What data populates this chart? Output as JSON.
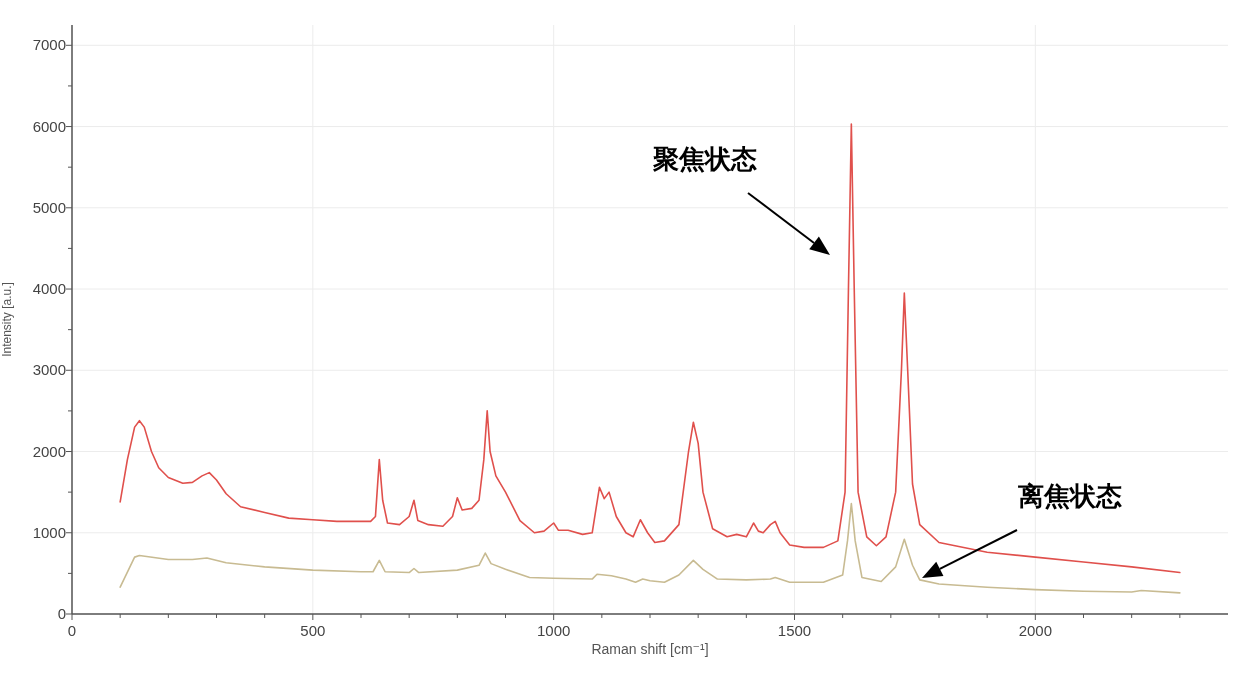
{
  "chart_data": {
    "type": "line",
    "xlabel": "Raman shift [cm⁻¹]",
    "ylabel": "Intensity [a.u.]",
    "xlim": [
      0,
      2400
    ],
    "ylim": [
      0,
      7250
    ],
    "xticks": [
      0,
      {
        "value": 100,
        "label": null
      },
      {
        "value": 200,
        "label": null
      },
      {
        "value": 300,
        "label": null
      },
      {
        "value": 400,
        "label": null
      },
      500,
      {
        "value": 600,
        "label": null
      },
      {
        "value": 700,
        "label": null
      },
      {
        "value": 800,
        "label": null
      },
      {
        "value": 900,
        "label": null
      },
      1000,
      {
        "value": 1100,
        "label": null
      },
      {
        "value": 1200,
        "label": null
      },
      {
        "value": 1300,
        "label": null
      },
      {
        "value": 1400,
        "label": null
      },
      1500,
      {
        "value": 1600,
        "label": null
      },
      {
        "value": 1700,
        "label": null
      },
      {
        "value": 1800,
        "label": null
      },
      {
        "value": 1900,
        "label": null
      },
      2000,
      {
        "value": 2100,
        "label": null
      },
      {
        "value": 2200,
        "label": null
      },
      {
        "value": 2300,
        "label": null
      }
    ],
    "yticks": [
      0,
      {
        "value": 500,
        "label": null
      },
      1000,
      {
        "value": 1500,
        "label": null
      },
      2000,
      {
        "value": 2500,
        "label": null
      },
      3000,
      {
        "value": 3500,
        "label": null
      },
      4000,
      {
        "value": 4500,
        "label": null
      },
      5000,
      {
        "value": 5500,
        "label": null
      },
      6000,
      {
        "value": 6500,
        "label": null
      },
      7000
    ],
    "grid": true,
    "marker": "none",
    "line_style": "solid",
    "series": [
      {
        "color": "#e0504c",
        "x": [
          100,
          115,
          130,
          140,
          150,
          165,
          180,
          200,
          230,
          250,
          270,
          285,
          300,
          320,
          350,
          400,
          450,
          500,
          550,
          600,
          620,
          630,
          638,
          645,
          655,
          680,
          700,
          710,
          718,
          740,
          770,
          790,
          800,
          810,
          830,
          845,
          855,
          862,
          868,
          880,
          900,
          930,
          960,
          980,
          1000,
          1010,
          1030,
          1060,
          1080,
          1095,
          1105,
          1115,
          1130,
          1150,
          1165,
          1180,
          1195,
          1210,
          1230,
          1260,
          1280,
          1290,
          1300,
          1310,
          1330,
          1360,
          1380,
          1400,
          1415,
          1425,
          1435,
          1450,
          1460,
          1470,
          1490,
          1520,
          1560,
          1590,
          1605,
          1612,
          1618,
          1624,
          1632,
          1650,
          1670,
          1690,
          1710,
          1722,
          1728,
          1735,
          1745,
          1760,
          1800,
          1900,
          2000,
          2100,
          2200,
          2300
        ],
        "values": [
          1380,
          1900,
          2300,
          2380,
          2300,
          2000,
          1800,
          1680,
          1610,
          1620,
          1700,
          1740,
          1650,
          1480,
          1320,
          1250,
          1180,
          1160,
          1140,
          1140,
          1140,
          1200,
          1900,
          1400,
          1120,
          1100,
          1200,
          1400,
          1150,
          1100,
          1080,
          1200,
          1430,
          1280,
          1300,
          1400,
          1900,
          2500,
          2000,
          1700,
          1500,
          1150,
          1000,
          1020,
          1120,
          1030,
          1030,
          980,
          1000,
          1560,
          1420,
          1500,
          1200,
          1000,
          950,
          1160,
          1000,
          880,
          900,
          1100,
          2000,
          2360,
          2100,
          1500,
          1050,
          950,
          980,
          950,
          1120,
          1020,
          1000,
          1100,
          1140,
          1000,
          850,
          820,
          820,
          900,
          1500,
          4000,
          6030,
          4000,
          1500,
          950,
          840,
          950,
          1500,
          3000,
          3950,
          3000,
          1600,
          1100,
          880,
          760,
          700,
          640,
          580,
          510
        ]
      },
      {
        "color": "#c8bb92",
        "x": [
          100,
          130,
          140,
          200,
          250,
          280,
          320,
          400,
          500,
          600,
          625,
          638,
          650,
          700,
          710,
          720,
          800,
          845,
          858,
          870,
          900,
          950,
          1000,
          1080,
          1090,
          1120,
          1150,
          1170,
          1185,
          1200,
          1230,
          1260,
          1290,
          1310,
          1340,
          1400,
          1450,
          1460,
          1490,
          1560,
          1600,
          1610,
          1618,
          1626,
          1640,
          1680,
          1710,
          1728,
          1745,
          1760,
          1800,
          1900,
          2000,
          2100,
          2200,
          2220,
          2300
        ],
        "values": [
          330,
          700,
          720,
          670,
          670,
          690,
          630,
          580,
          540,
          520,
          520,
          660,
          520,
          510,
          560,
          510,
          540,
          600,
          750,
          620,
          550,
          450,
          440,
          430,
          490,
          470,
          430,
          390,
          430,
          410,
          390,
          480,
          660,
          550,
          430,
          420,
          430,
          450,
          390,
          390,
          480,
          900,
          1360,
          900,
          450,
          400,
          580,
          920,
          600,
          420,
          370,
          330,
          300,
          280,
          270,
          290,
          260
        ]
      }
    ],
    "annotations": [
      "聚焦状态",
      "离焦状态"
    ]
  }
}
